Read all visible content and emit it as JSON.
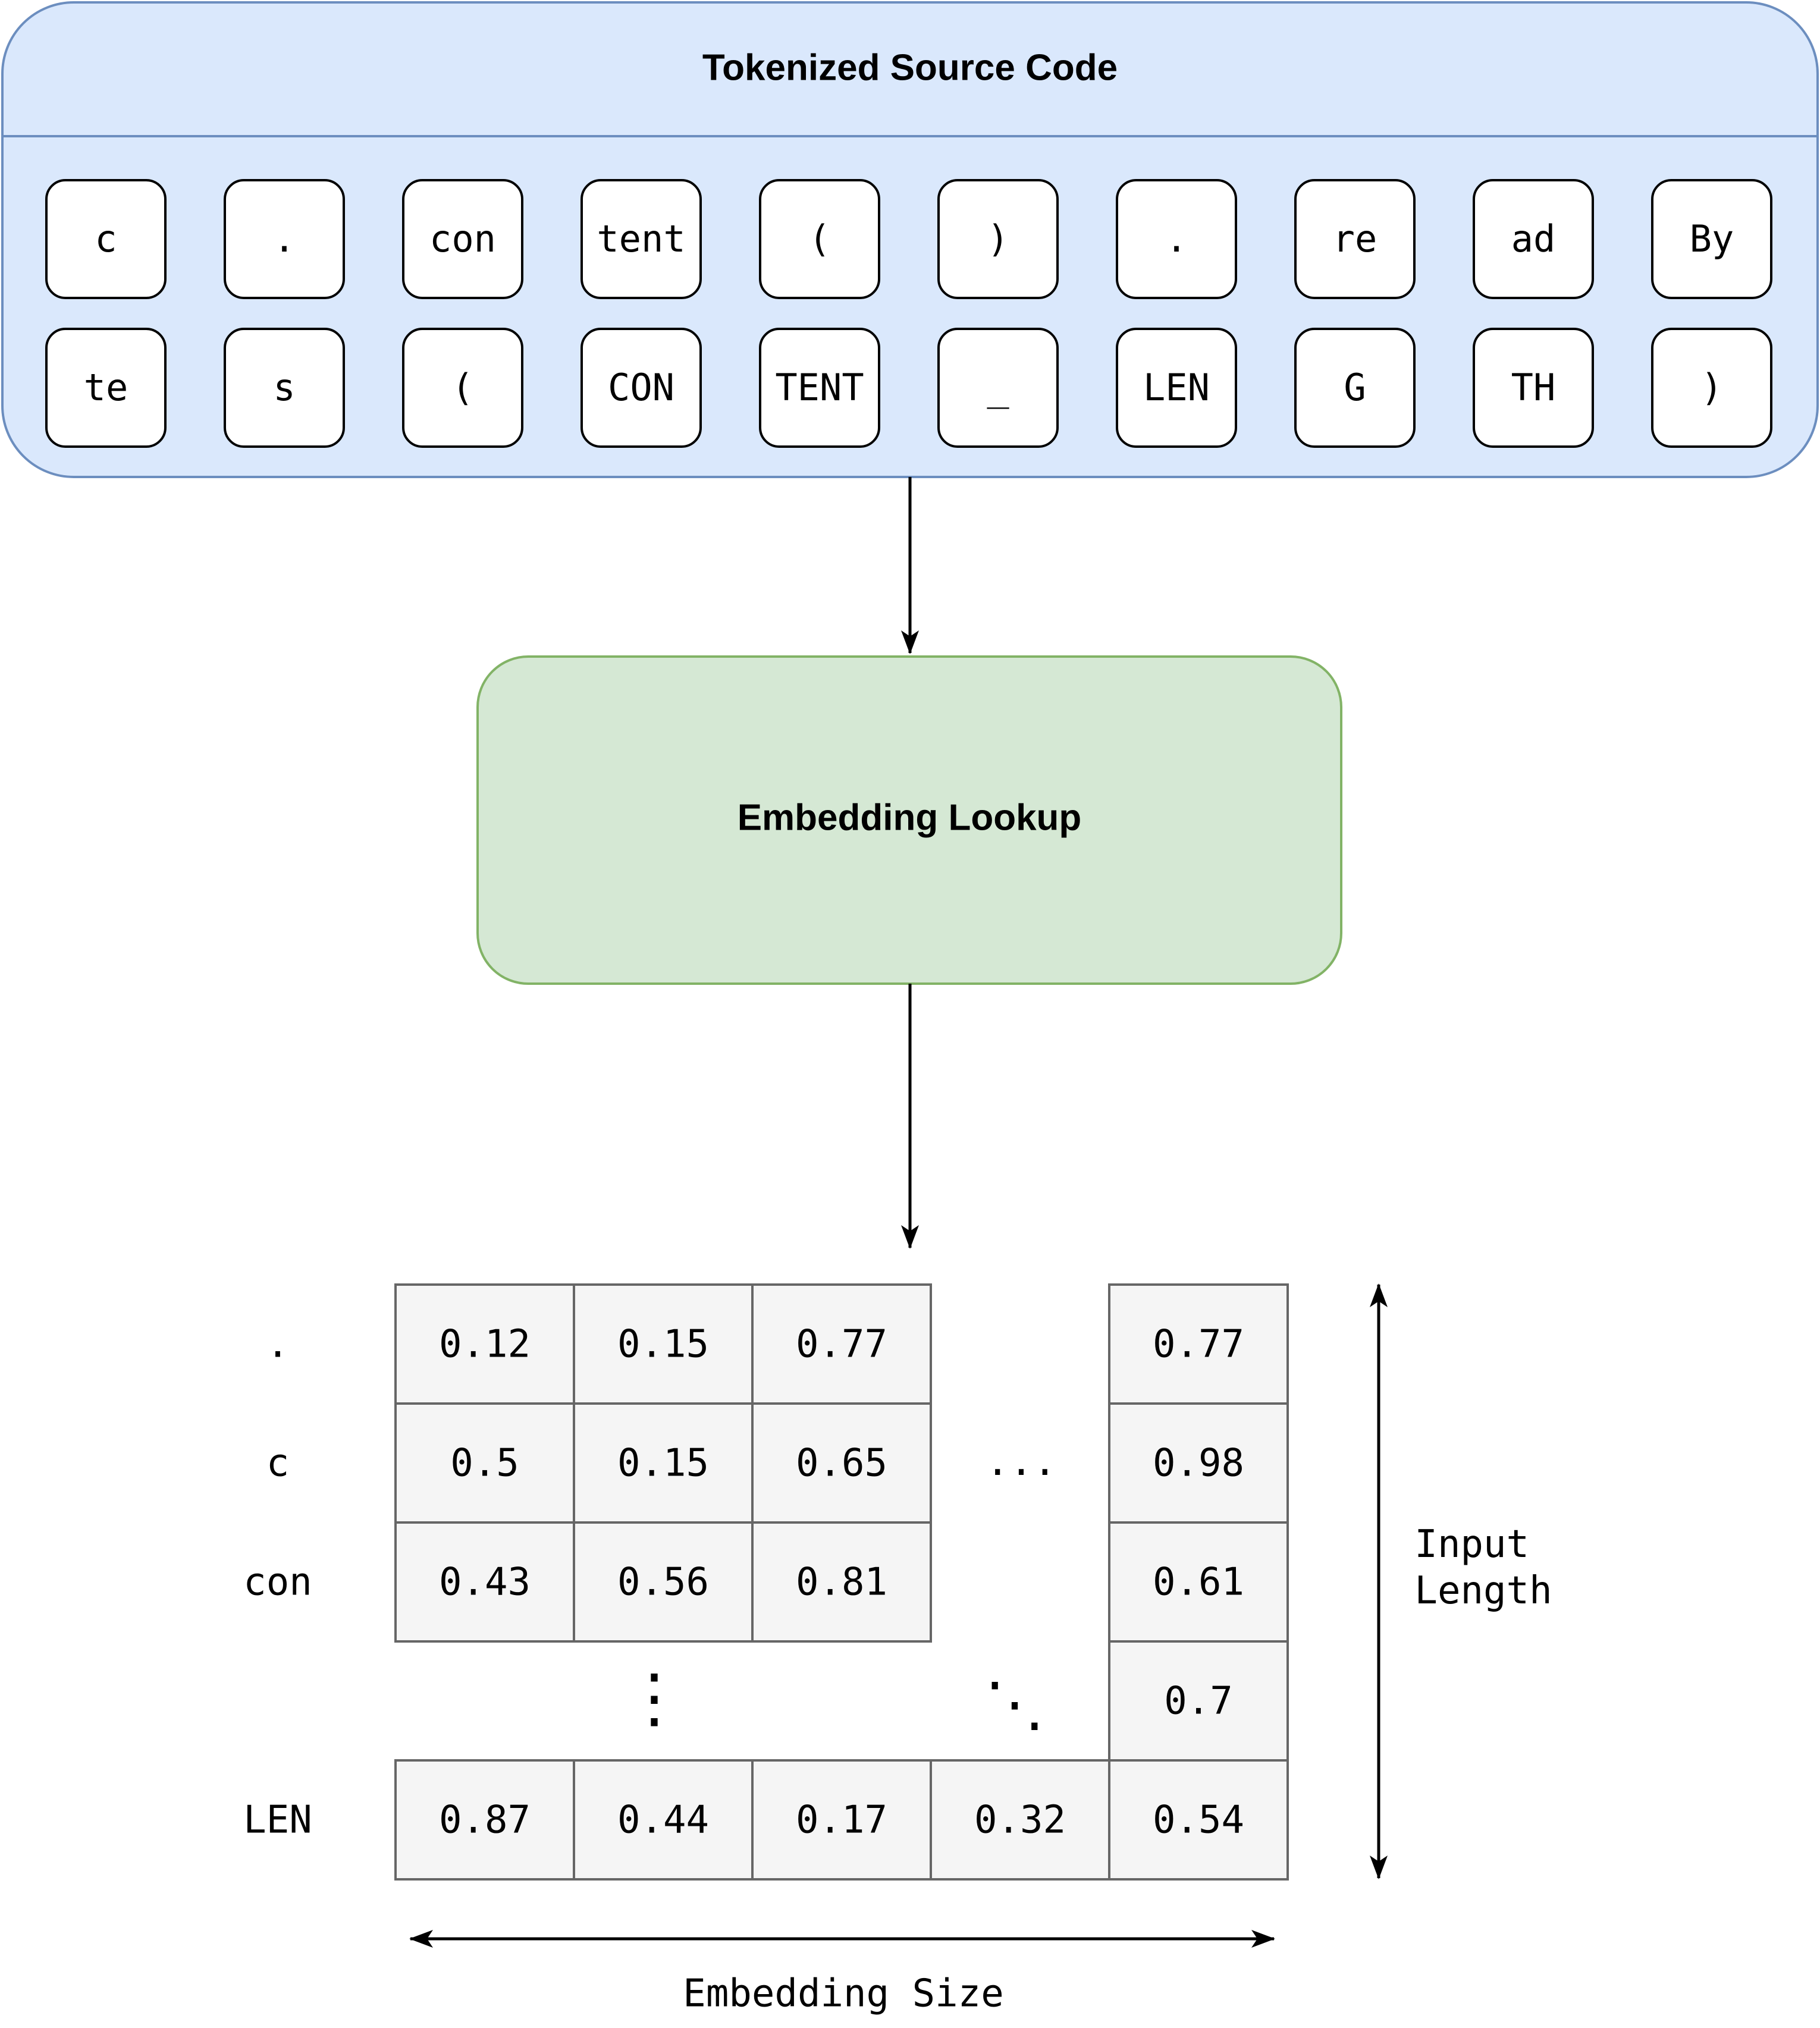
{
  "source_panel": {
    "title": "Tokenized Source Code",
    "fill": "#dae8fc",
    "stroke": "#6c8ebf",
    "tokens": [
      [
        "c",
        ".",
        "con",
        "tent",
        "(",
        ")",
        ".",
        "re",
        "ad",
        "By"
      ],
      [
        "te",
        "s",
        "(",
        "CON",
        "TENT",
        "_",
        "LEN",
        "G",
        "TH",
        ")"
      ]
    ]
  },
  "lookup": {
    "label": "Embedding Lookup",
    "fill": "#d5e8d4",
    "stroke": "#82b366"
  },
  "matrix": {
    "cell_fill": "#f5f5f5",
    "cell_stroke": "#666666",
    "row_labels": [
      ".",
      "c",
      "con",
      "",
      "LEN"
    ],
    "rows": [
      [
        "0.12",
        "0.15",
        "0.77",
        "",
        "0.77"
      ],
      [
        "0.5",
        "0.15",
        "0.65",
        "",
        "0.98"
      ],
      [
        "0.43",
        "0.56",
        "0.81",
        "",
        "0.61"
      ],
      [
        "",
        "",
        "",
        "",
        "0.7"
      ],
      [
        "0.87",
        "0.44",
        "0.17",
        "0.32",
        "0.54"
      ]
    ],
    "horizontal_ellipsis": "...",
    "vertical_ellipsis": "⋮",
    "diagonal_ellipsis": "⋱",
    "input_length_label": [
      "Input",
      "Length"
    ],
    "embedding_size_label": "Embedding Size"
  }
}
